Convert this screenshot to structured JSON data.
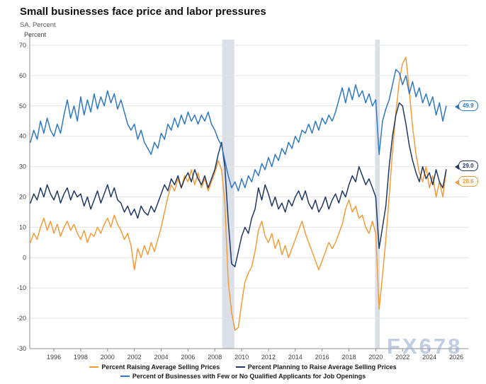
{
  "title": "Small businesses face price and labor pressures",
  "subtitle": "SA, Percent",
  "axis_unit_label": "Percent",
  "watermark": "FX678",
  "chart_data": {
    "type": "line",
    "title": "Small businesses face price and labor pressures",
    "subtitle": "SA, Percent",
    "ylabel": "Percent",
    "xlabel": "",
    "grid": "horizontal",
    "legend_position": "bottom",
    "ylim": [
      -30,
      70
    ],
    "xlim": [
      1994.2,
      2026.9
    ],
    "y_ticks": [
      70,
      60,
      50,
      40,
      30,
      20,
      10,
      0,
      -10,
      -20,
      -30
    ],
    "x_ticks": [
      1996,
      1998,
      2000,
      2002,
      2004,
      2006,
      2008,
      2010,
      2012,
      2014,
      2016,
      2018,
      2020,
      2022,
      2024,
      2026
    ],
    "recession_bands": [
      {
        "from": 2008.55,
        "to": 2009.45
      },
      {
        "from": 2019.95,
        "to": 2020.3
      }
    ],
    "band_color": "#DBDFE8",
    "x_start_year": 1994.25,
    "x_step_years": 0.25,
    "series": [
      {
        "name": "Percent Raising Average Selling Prices",
        "color": "#F49D38",
        "end_label": "28.6",
        "values": [
          5,
          8,
          6,
          10,
          13,
          9,
          12,
          8,
          11,
          7,
          10,
          12,
          9,
          11,
          8,
          6,
          9,
          5,
          8,
          7,
          10,
          8,
          11,
          13,
          10,
          14,
          11,
          9,
          6,
          8,
          4,
          -4,
          3,
          0,
          4,
          1,
          5,
          2,
          6,
          10,
          15,
          20,
          24,
          22,
          26,
          23,
          27,
          25,
          29,
          24,
          28,
          23,
          26,
          22,
          25,
          28,
          32,
          29,
          18,
          -8,
          -18,
          -24,
          -23,
          -15,
          -8,
          -5,
          -3,
          2,
          9,
          12,
          7,
          5,
          8,
          3,
          6,
          1,
          4,
          0,
          3,
          6,
          9,
          12,
          8,
          5,
          2,
          -1,
          -4,
          -1,
          2,
          5,
          3,
          5,
          8,
          11,
          16,
          19,
          15,
          17,
          13,
          14,
          10,
          8,
          12,
          8,
          -17,
          -6,
          6,
          20,
          35,
          48,
          58,
          64,
          66,
          55,
          43,
          34,
          28,
          25,
          30,
          23,
          27,
          20,
          25,
          20,
          28.6
        ]
      },
      {
        "name": "Percent Planning to Raise Average Selling Prices",
        "color": "#1F3864",
        "end_label": "29.0",
        "values": [
          18,
          21,
          19,
          23,
          20,
          24,
          21,
          19,
          22,
          18,
          21,
          23,
          19,
          22,
          20,
          21,
          17,
          20,
          16,
          19,
          22,
          18,
          21,
          24,
          20,
          23,
          19,
          18,
          15,
          17,
          14,
          16,
          13,
          17,
          15,
          14,
          17,
          15,
          18,
          21,
          24,
          22,
          26,
          24,
          27,
          23,
          26,
          28,
          25,
          29,
          26,
          24,
          27,
          23,
          26,
          29,
          34,
          38,
          30,
          12,
          -2,
          -3,
          2,
          7,
          10,
          8,
          13,
          16,
          23,
          19,
          24,
          21,
          17,
          20,
          16,
          18,
          15,
          19,
          17,
          20,
          22,
          19,
          22,
          18,
          16,
          19,
          15,
          17,
          20,
          16,
          19,
          21,
          18,
          22,
          20,
          24,
          27,
          25,
          30,
          27,
          24,
          26,
          23,
          20,
          3,
          10,
          17,
          30,
          40,
          47,
          51,
          50,
          44,
          37,
          32,
          28,
          25,
          30,
          26,
          28,
          24,
          29,
          25,
          23,
          29
        ]
      },
      {
        "name": "Percent of Businesses with Few or No Qualified Applicants for Job Openings",
        "color": "#2E79C1",
        "end_label": "49.9",
        "values": [
          38,
          42,
          39,
          45,
          41,
          46,
          42,
          40,
          44,
          41,
          47,
          52,
          46,
          50,
          45,
          53,
          47,
          52,
          48,
          54,
          49,
          53,
          50,
          55,
          51,
          54,
          49,
          52,
          48,
          44,
          42,
          44,
          39,
          42,
          38,
          36,
          34,
          38,
          36,
          41,
          39,
          44,
          42,
          46,
          43,
          47,
          44,
          48,
          45,
          47,
          44,
          47,
          45,
          48,
          44,
          42,
          39,
          37,
          32,
          27,
          23,
          25,
          22,
          26,
          23,
          27,
          25,
          29,
          27,
          31,
          29,
          33,
          30,
          34,
          32,
          36,
          34,
          38,
          36,
          40,
          38,
          42,
          41,
          44,
          41,
          45,
          42,
          46,
          44,
          47,
          45,
          48,
          52,
          56,
          51,
          56,
          52,
          57,
          53,
          55,
          51,
          54,
          50,
          52,
          34,
          45,
          49,
          52,
          57,
          62,
          61,
          57,
          60,
          54,
          58,
          53,
          56,
          51,
          54,
          50,
          53,
          47,
          51,
          45,
          49.9
        ]
      }
    ]
  }
}
